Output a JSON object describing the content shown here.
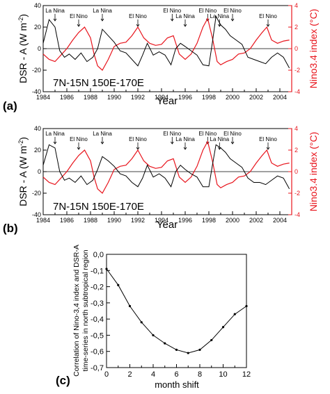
{
  "chart_data": [
    {
      "type": "line",
      "panel_label": "(a)",
      "region_text": "7N-15N   150E-170E",
      "xlabel": "Year",
      "ylabel_left": "DSR - A  (W m",
      "ylabel_left_sup": "-2",
      "ylabel_right": "Nino3.4 index (",
      "ylabel_right_unit": "°C)",
      "xlim": [
        1984,
        2005
      ],
      "ylim_left": [
        -40,
        40
      ],
      "ylim_right": [
        -4,
        4
      ],
      "x_ticks": [
        "1984",
        "1986",
        "1988",
        "1990",
        "1992",
        "1994",
        "1996",
        "1998",
        "2000",
        "2002",
        "2004"
      ],
      "y_ticks_left": [
        "40",
        "20",
        "0",
        "-20",
        "-40"
      ],
      "y_ticks_right": [
        "4",
        "2",
        "0",
        "-2",
        "-4"
      ],
      "colors": {
        "dsr": "#000000",
        "nino": "#e8141c",
        "right_axis": "#e8141c"
      },
      "annotations": [
        {
          "label": "La Nina",
          "x": 1985.0
        },
        {
          "label": "El Nino",
          "x": 1987.0
        },
        {
          "label": "La Nina",
          "x": 1989.0
        },
        {
          "label": "El Nino",
          "x": 1992.0
        },
        {
          "label": "El Nino",
          "x": 1994.9
        },
        {
          "label": "La Nina",
          "x": 1996.0
        },
        {
          "label": "El Nino",
          "x": 1997.9
        },
        {
          "label": "La Nina",
          "x": 1998.9
        },
        {
          "label": "El Nino",
          "x": 2000.0
        },
        {
          "label": "El Nino",
          "x": 2003.0
        }
      ],
      "series": [
        {
          "axis": "left",
          "x": [
            1984.0,
            1984.5,
            1985.0,
            1985.4,
            1985.8,
            1986.2,
            1986.7,
            1987.2,
            1987.7,
            1988.2,
            1988.6,
            1989.0,
            1989.5,
            1990.0,
            1990.5,
            1991.0,
            1991.5,
            1992.0,
            1992.4,
            1992.8,
            1993.3,
            1993.8,
            1994.3,
            1994.8,
            1995.2,
            1995.6,
            1996.0,
            1996.5,
            1997.0,
            1997.5,
            1998.0,
            1998.3,
            1998.6,
            1999.0,
            1999.4,
            1999.8,
            2000.3,
            2000.8,
            2001.3,
            2001.8,
            2002.3,
            2002.8,
            2003.3,
            2003.8,
            2004.3,
            2004.8
          ],
          "y": [
            5,
            27,
            20,
            -2,
            -8,
            -5,
            -10,
            -4,
            -12,
            -8,
            0,
            18,
            12,
            6,
            -2,
            -4,
            -10,
            -16,
            -6,
            5,
            -6,
            -3,
            -6,
            -15,
            0,
            5,
            2,
            -2,
            -6,
            -15,
            -16,
            6,
            30,
            22,
            18,
            12,
            8,
            4,
            -8,
            -10,
            -12,
            -14,
            -8,
            -4,
            -8,
            -18
          ]
        },
        {
          "axis": "right",
          "x": [
            1984.0,
            1984.5,
            1985.0,
            1985.5,
            1986.0,
            1986.5,
            1987.0,
            1987.5,
            1988.0,
            1988.3,
            1988.6,
            1989.0,
            1989.5,
            1990.0,
            1990.5,
            1991.0,
            1991.5,
            1992.0,
            1992.5,
            1993.0,
            1993.5,
            1994.0,
            1994.5,
            1995.0,
            1995.5,
            1996.0,
            1996.5,
            1997.0,
            1997.5,
            1997.9,
            1998.3,
            1998.7,
            1999.0,
            1999.5,
            2000.0,
            2000.5,
            2001.0,
            2001.5,
            2002.0,
            2002.5,
            2002.9,
            2003.3,
            2003.8,
            2004.3,
            2004.8
          ],
          "y": [
            -0.5,
            -1.0,
            -1.2,
            -0.6,
            0.0,
            0.8,
            1.5,
            2.0,
            1.0,
            -0.5,
            -1.6,
            -2.0,
            -1.0,
            0.2,
            0.5,
            0.6,
            1.2,
            2.0,
            1.0,
            0.5,
            0.3,
            0.4,
            1.0,
            1.2,
            -0.5,
            -1.0,
            -0.5,
            0.5,
            2.0,
            2.8,
            1.0,
            -1.2,
            -1.5,
            -1.2,
            -1.0,
            -0.5,
            -0.4,
            0.0,
            0.8,
            1.5,
            2.0,
            0.8,
            0.5,
            0.7,
            0.8
          ]
        }
      ]
    },
    {
      "type": "line",
      "panel_label": "(b)",
      "region_text": "7N-15N   150E-170E",
      "xlabel": "Year",
      "ylabel_left": "DSR - A  (W m",
      "ylabel_left_sup": "-2",
      "ylabel_right": "Nino3.4 index (",
      "ylabel_right_unit": "°C)",
      "xlim": [
        1984,
        2005
      ],
      "ylim_left": [
        -40,
        40
      ],
      "ylim_right": [
        -4,
        4
      ],
      "x_ticks": [
        "1984",
        "1986",
        "1988",
        "1990",
        "1992",
        "1994",
        "1996",
        "1998",
        "2000",
        "2002",
        "2004"
      ],
      "y_ticks_left": [
        "40",
        "20",
        "0",
        "-20",
        "-40"
      ],
      "y_ticks_right": [
        "4",
        "2",
        "0",
        "-2",
        "-4"
      ],
      "colors": {
        "dsr": "#000000",
        "nino": "#e8141c",
        "right_axis": "#e8141c"
      },
      "annotations": [
        {
          "label": "La Nina",
          "x": 1985.0
        },
        {
          "label": "El Nino",
          "x": 1987.0
        },
        {
          "label": "La Nina",
          "x": 1989.0
        },
        {
          "label": "El Nino",
          "x": 1992.0
        },
        {
          "label": "El Nino",
          "x": 1994.9
        },
        {
          "label": "La Nina",
          "x": 1996.0
        },
        {
          "label": "El Nino",
          "x": 1997.9
        },
        {
          "label": "La Nina",
          "x": 1998.9
        },
        {
          "label": "El Nino",
          "x": 2000.0
        },
        {
          "label": "El Nino",
          "x": 2003.0
        }
      ],
      "series": [
        {
          "axis": "left",
          "x": [
            1984.0,
            1984.5,
            1985.0,
            1985.4,
            1985.8,
            1986.2,
            1986.7,
            1987.2,
            1987.7,
            1988.2,
            1988.6,
            1989.0,
            1989.5,
            1990.0,
            1990.5,
            1991.0,
            1991.5,
            1992.0,
            1992.4,
            1992.8,
            1993.3,
            1993.8,
            1994.3,
            1994.8,
            1995.2,
            1995.6,
            1996.0,
            1996.5,
            1997.0,
            1997.5,
            1998.0,
            1998.3,
            1998.6,
            1999.0,
            1999.4,
            1999.8,
            2000.3,
            2000.8,
            2001.3,
            2001.8,
            2002.3,
            2002.8,
            2003.3,
            2003.8,
            2004.3,
            2004.8
          ],
          "y": [
            6,
            25,
            22,
            0,
            -8,
            -6,
            -10,
            -4,
            -12,
            -8,
            2,
            14,
            10,
            5,
            -2,
            -4,
            -10,
            -14,
            -6,
            6,
            -5,
            -2,
            -6,
            -14,
            0,
            6,
            2,
            -2,
            -5,
            -14,
            -14,
            6,
            25,
            22,
            18,
            12,
            8,
            4,
            -6,
            -10,
            -10,
            -12,
            -8,
            -4,
            -6,
            -16
          ]
        },
        {
          "axis": "right",
          "x": [
            1984.0,
            1984.5,
            1985.0,
            1985.5,
            1986.0,
            1986.5,
            1987.0,
            1987.5,
            1988.0,
            1988.3,
            1988.6,
            1989.0,
            1989.5,
            1990.0,
            1990.5,
            1991.0,
            1991.5,
            1992.0,
            1992.5,
            1993.0,
            1993.5,
            1994.0,
            1994.5,
            1995.0,
            1995.5,
            1996.0,
            1996.5,
            1997.0,
            1997.5,
            1997.9,
            1998.3,
            1998.7,
            1999.0,
            1999.5,
            2000.0,
            2000.5,
            2001.0,
            2001.5,
            2002.0,
            2002.5,
            2002.9,
            2003.3,
            2003.8,
            2004.3,
            2004.8
          ],
          "y": [
            -0.5,
            -1.0,
            -1.2,
            -0.6,
            0.0,
            0.8,
            1.5,
            2.0,
            1.0,
            -0.5,
            -1.6,
            -2.0,
            -1.0,
            0.2,
            0.5,
            0.6,
            1.2,
            2.0,
            1.0,
            0.5,
            0.3,
            0.4,
            1.0,
            1.2,
            -0.5,
            -1.0,
            -0.5,
            0.5,
            2.0,
            2.8,
            1.0,
            -1.2,
            -1.5,
            -1.2,
            -1.0,
            -0.5,
            -0.4,
            0.0,
            0.8,
            1.5,
            2.0,
            0.8,
            0.5,
            0.7,
            0.8
          ]
        }
      ]
    },
    {
      "type": "line",
      "panel_label": "(c)",
      "xlabel": "month shift",
      "ylabel_line1": "Correlation of Nino-3,4 index and DSR-A",
      "ylabel_line2": "time-series in north subtropical region",
      "xlim": [
        0,
        12
      ],
      "ylim": [
        -0.7,
        0.0
      ],
      "x_ticks": [
        "0",
        "2",
        "4",
        "6",
        "8",
        "10",
        "12"
      ],
      "y_ticks": [
        "0,0",
        "-0,1",
        "-0,2",
        "-0,3",
        "-0,4",
        "-0,5",
        "-0,6",
        "-0,7"
      ],
      "colors": {
        "line": "#000000"
      },
      "series": [
        {
          "x": [
            0,
            1,
            2,
            3,
            4,
            5,
            6,
            7,
            8,
            9,
            10,
            11,
            12
          ],
          "y": [
            -0.09,
            -0.19,
            -0.32,
            -0.42,
            -0.5,
            -0.55,
            -0.59,
            -0.61,
            -0.59,
            -0.53,
            -0.45,
            -0.37,
            -0.32
          ]
        }
      ]
    }
  ]
}
